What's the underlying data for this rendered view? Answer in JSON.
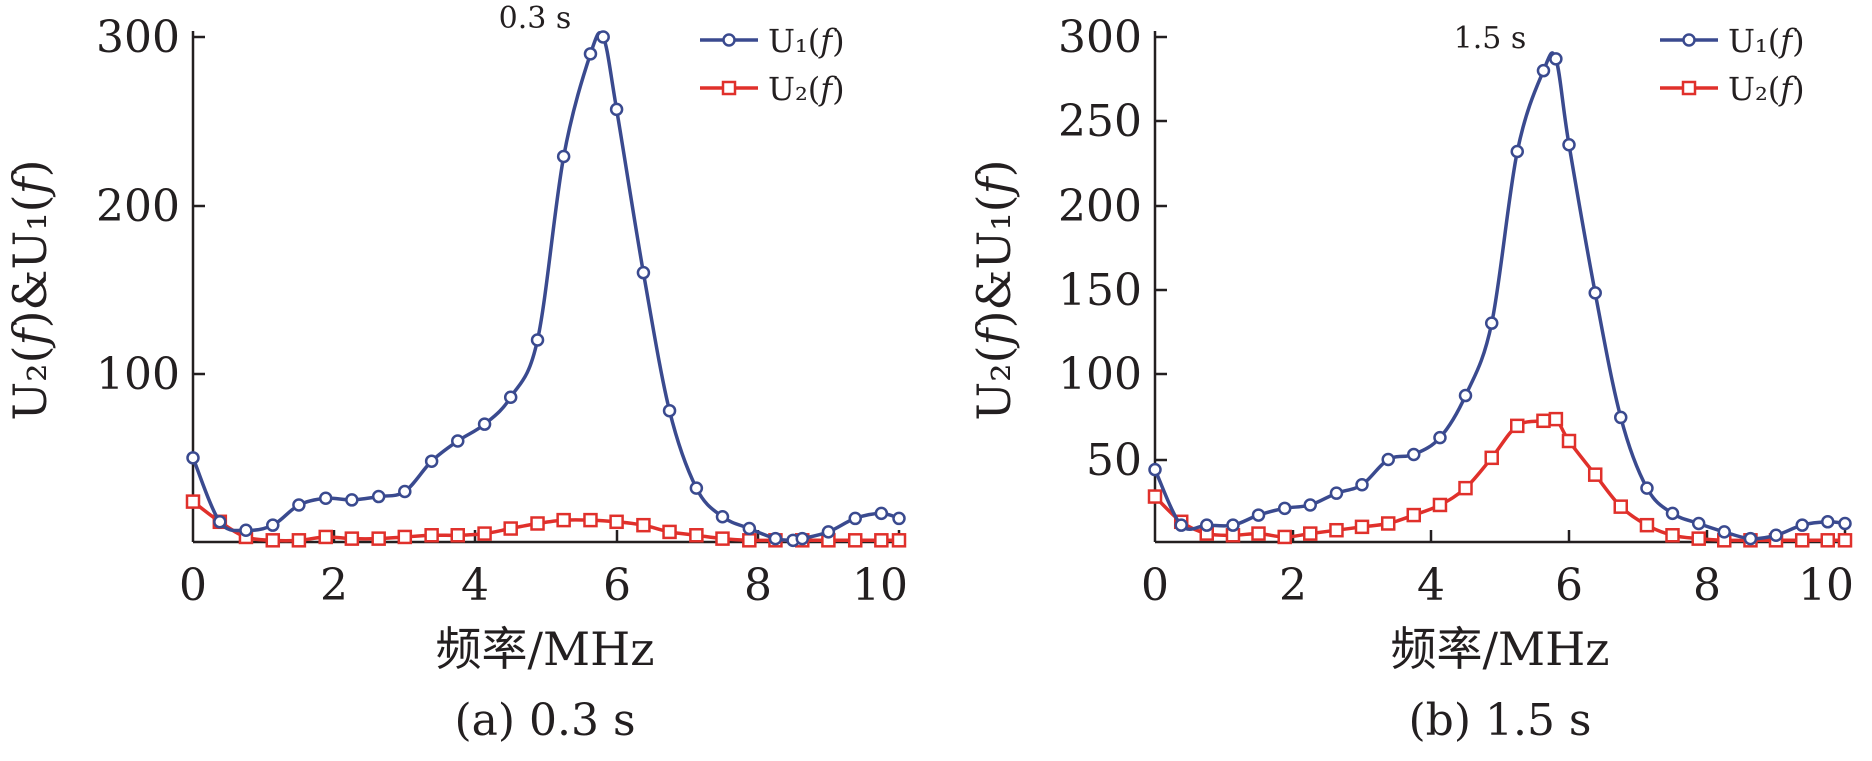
{
  "chart_data": [
    {
      "type": "line",
      "caption": "(a) 0.3 s",
      "annotation": "0.3 s",
      "xlabel": "频率/MHz",
      "ylabel": "U₂(𝑓)&U₁(𝑓)",
      "xlim": [
        0,
        10
      ],
      "ylim": [
        0,
        300
      ],
      "xticks": [
        "0",
        "2",
        "4",
        "6",
        "8",
        "10"
      ],
      "yticks": [
        "100",
        "200",
        "300"
      ],
      "legend_position": "top-right",
      "series": [
        {
          "name": "U₁(𝑓)",
          "color": "#3a4a8f",
          "marker": "circle",
          "x": [
            0,
            0.38,
            0.75,
            1.13,
            1.5,
            1.88,
            2.25,
            2.63,
            3.0,
            3.38,
            3.75,
            4.13,
            4.5,
            4.88,
            5.25,
            5.63,
            5.81,
            6.0,
            6.38,
            6.75,
            7.13,
            7.5,
            7.88,
            8.25,
            8.5,
            8.63,
            9.0,
            9.38,
            9.75,
            10.0
          ],
          "y": [
            50,
            12,
            7,
            10,
            22,
            26,
            25,
            27,
            30,
            48,
            60,
            70,
            86,
            120,
            229,
            290,
            300,
            257,
            160,
            78,
            32,
            15,
            8,
            2,
            1,
            2,
            6,
            14,
            17,
            14
          ]
        },
        {
          "name": "U₂(𝑓)",
          "color": "#e0302b",
          "marker": "square",
          "x": [
            0,
            0.38,
            0.75,
            1.13,
            1.5,
            1.88,
            2.25,
            2.63,
            3.0,
            3.38,
            3.75,
            4.13,
            4.5,
            4.88,
            5.25,
            5.63,
            6.0,
            6.38,
            6.75,
            7.13,
            7.5,
            7.88,
            8.25,
            8.63,
            9.0,
            9.38,
            9.75,
            10.0
          ],
          "y": [
            24,
            12,
            3,
            1,
            1,
            3,
            2,
            2,
            3,
            4,
            4,
            5,
            8,
            11,
            13,
            13,
            12,
            10,
            6,
            4,
            2,
            1,
            1,
            1,
            1,
            1,
            1,
            1
          ]
        }
      ]
    },
    {
      "type": "line",
      "caption": "(b) 1.5 s",
      "annotation": "1.5 s",
      "xlabel": "频率/MHz",
      "ylabel": "U₂(𝑓)&U₁(𝑓)",
      "xlim": [
        0,
        10
      ],
      "ylim": [
        0,
        300
      ],
      "xticks": [
        "0",
        "2",
        "4",
        "6",
        "8",
        "10"
      ],
      "yticks": [
        "50",
        "100",
        "150",
        "200",
        "250",
        "300"
      ],
      "legend_position": "top-right",
      "series": [
        {
          "name": "U₁(𝑓)",
          "color": "#3a4a8f",
          "marker": "circle",
          "x": [
            0,
            0.38,
            0.75,
            1.13,
            1.5,
            1.88,
            2.25,
            2.63,
            3.0,
            3.38,
            3.75,
            4.13,
            4.5,
            4.88,
            5.25,
            5.63,
            5.81,
            6.0,
            6.38,
            6.75,
            7.13,
            7.5,
            7.88,
            8.25,
            8.63,
            9.0,
            9.38,
            9.75,
            10.0
          ],
          "y": [
            43,
            10,
            10,
            10,
            16,
            20,
            22,
            29,
            34,
            49,
            52,
            62,
            87,
            130,
            232,
            280,
            287,
            236,
            148,
            74,
            32,
            17,
            11,
            6,
            2,
            4,
            10,
            12,
            11
          ]
        },
        {
          "name": "U₂(𝑓)",
          "color": "#e0302b",
          "marker": "square",
          "x": [
            0,
            0.38,
            0.75,
            1.13,
            1.5,
            1.88,
            2.25,
            2.63,
            3.0,
            3.38,
            3.75,
            4.13,
            4.5,
            4.88,
            5.25,
            5.63,
            5.81,
            6.0,
            6.38,
            6.75,
            7.13,
            7.5,
            7.88,
            8.25,
            8.63,
            9.0,
            9.38,
            9.75,
            10.0
          ],
          "y": [
            27,
            12,
            5,
            4,
            5,
            3,
            5,
            7,
            9,
            11,
            16,
            22,
            32,
            50,
            69,
            72,
            73,
            60,
            40,
            21,
            10,
            4,
            2,
            1,
            1,
            1,
            1,
            1,
            1
          ]
        }
      ]
    }
  ]
}
